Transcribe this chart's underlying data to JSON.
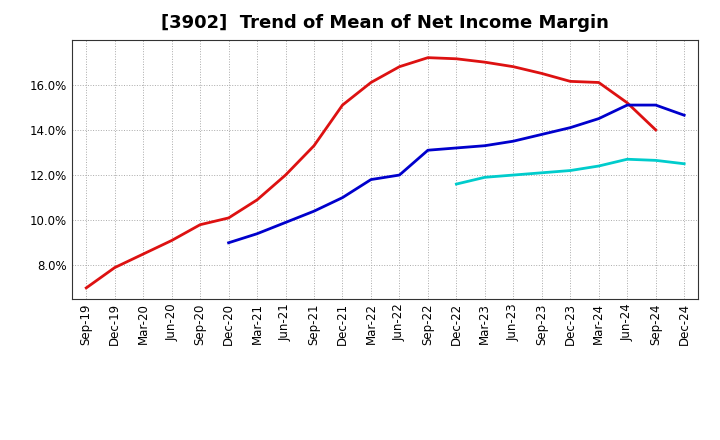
{
  "title": "[3902]  Trend of Mean of Net Income Margin",
  "background_color": "#ffffff",
  "plot_bg_color": "#ffffff",
  "grid_color": "#aaaaaa",
  "x_labels": [
    "Sep-19",
    "Dec-19",
    "Mar-20",
    "Jun-20",
    "Sep-20",
    "Dec-20",
    "Mar-21",
    "Jun-21",
    "Sep-21",
    "Dec-21",
    "Mar-22",
    "Jun-22",
    "Sep-22",
    "Dec-22",
    "Mar-23",
    "Jun-23",
    "Sep-23",
    "Dec-23",
    "Mar-24",
    "Jun-24",
    "Sep-24",
    "Dec-24"
  ],
  "series": {
    "3 Years": {
      "color": "#dd1111",
      "linewidth": 2.0,
      "data_x": [
        0,
        1,
        2,
        3,
        4,
        5,
        6,
        7,
        8,
        9,
        10,
        11,
        12,
        13,
        14,
        15,
        16,
        17,
        18,
        19,
        20
      ],
      "data_y": [
        7.0,
        7.9,
        8.5,
        9.1,
        9.8,
        10.1,
        10.9,
        12.0,
        13.3,
        15.1,
        16.1,
        16.8,
        17.2,
        17.15,
        17.0,
        16.8,
        16.5,
        16.15,
        16.1,
        15.2,
        14.0
      ]
    },
    "5 Years": {
      "color": "#0000cc",
      "linewidth": 2.0,
      "data_x": [
        5,
        6,
        7,
        8,
        9,
        10,
        11,
        12,
        13,
        14,
        15,
        16,
        17,
        18,
        19,
        20,
        21
      ],
      "data_y": [
        9.0,
        9.4,
        9.9,
        10.4,
        11.0,
        11.8,
        12.0,
        13.1,
        13.2,
        13.3,
        13.5,
        13.8,
        14.1,
        14.5,
        15.1,
        15.1,
        14.65
      ]
    },
    "7 Years": {
      "color": "#00cccc",
      "linewidth": 2.0,
      "data_x": [
        13,
        14,
        15,
        16,
        17,
        18,
        19,
        20,
        21
      ],
      "data_y": [
        11.6,
        11.9,
        12.0,
        12.1,
        12.2,
        12.4,
        12.7,
        12.65,
        12.5
      ]
    },
    "10 Years": {
      "color": "#228822",
      "linewidth": 2.0,
      "data_x": [],
      "data_y": []
    }
  },
  "ylim": [
    6.5,
    18.0
  ],
  "yticks": [
    8.0,
    10.0,
    12.0,
    14.0,
    16.0
  ],
  "legend_ncol": 4,
  "title_fontsize": 13,
  "tick_fontsize": 8.5,
  "legend_fontsize": 9.5
}
